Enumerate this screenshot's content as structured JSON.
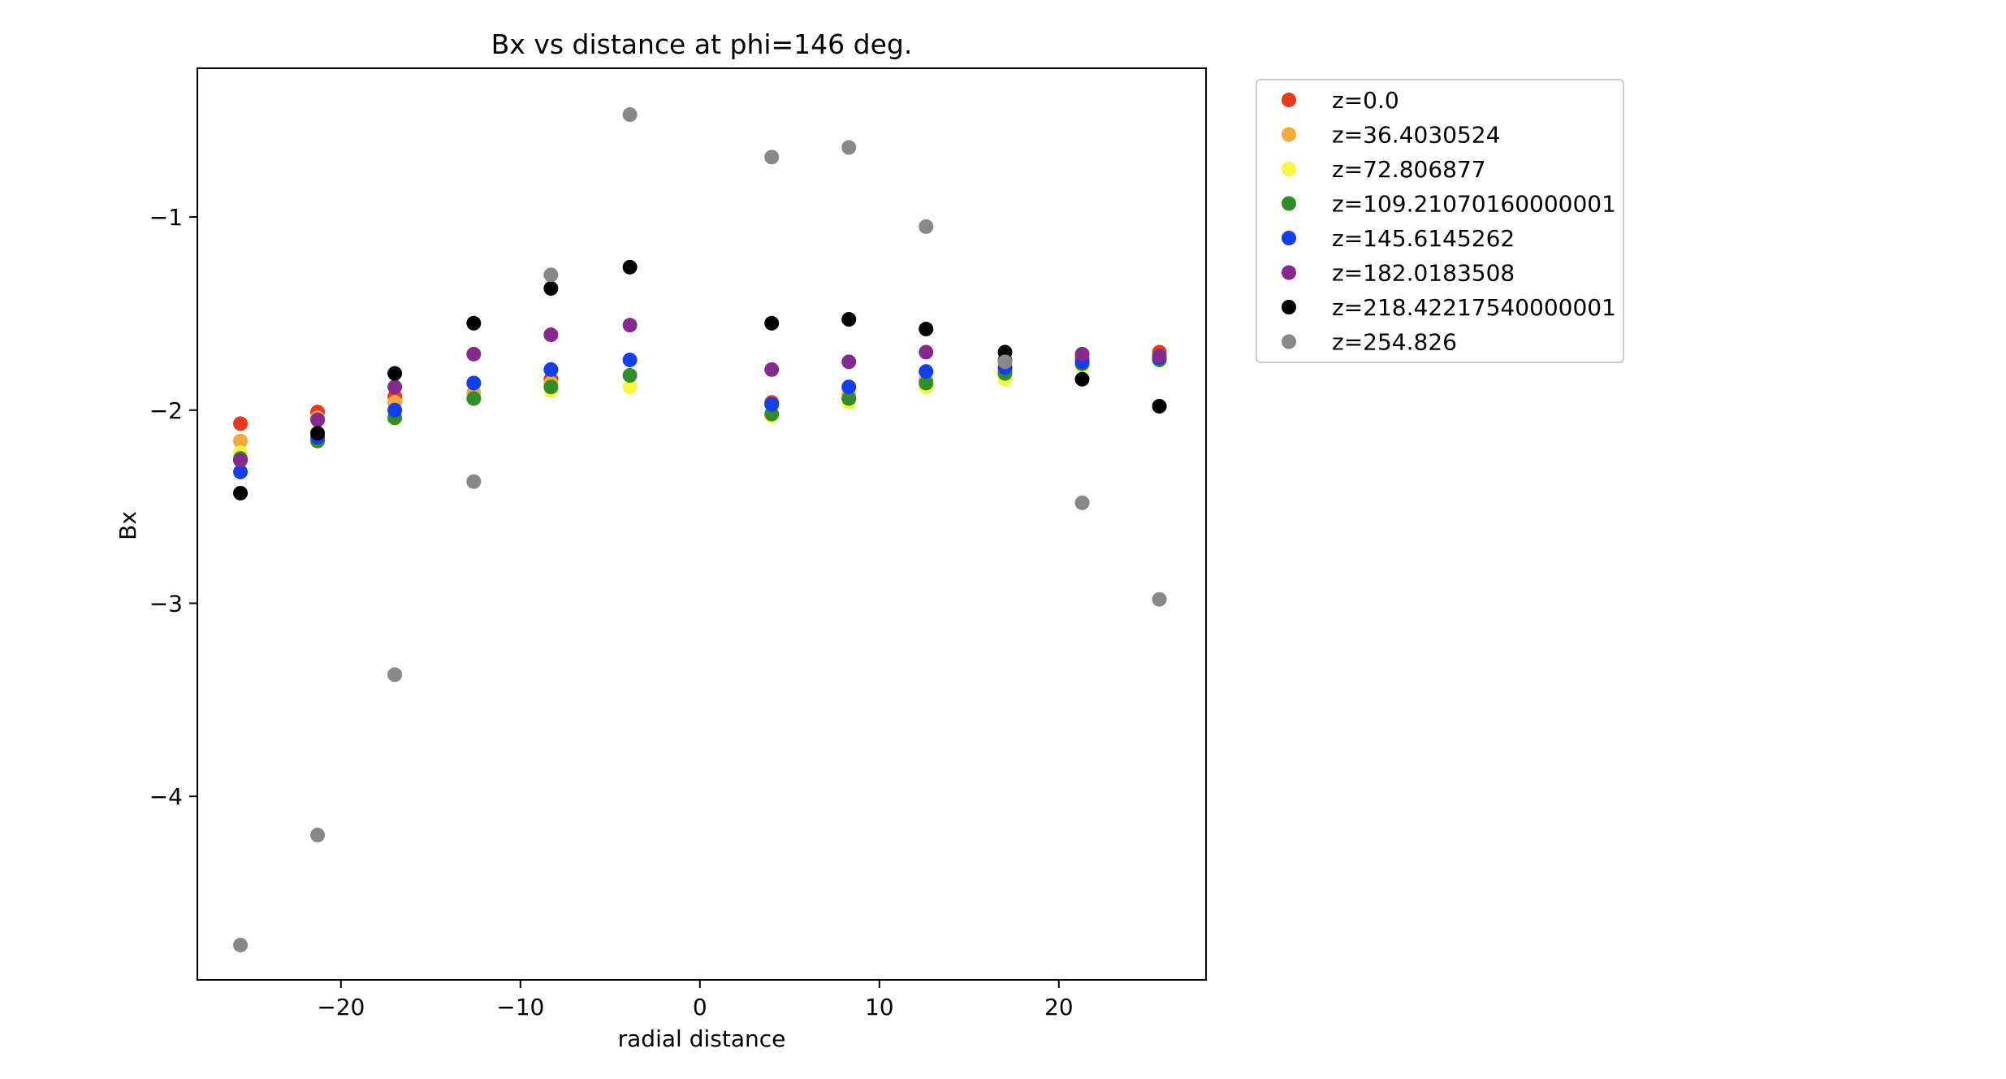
{
  "chart_data": {
    "type": "scatter",
    "title": "Bx vs distance at phi=146 deg.",
    "xlabel": "radial distance",
    "ylabel": "Bx",
    "xlim": [
      -28,
      28.2
    ],
    "ylim": [
      -4.95,
      -0.23
    ],
    "xticks": [
      -20,
      -10,
      0,
      10,
      20
    ],
    "xtick_labels": [
      "−20",
      "−10",
      "0",
      "10",
      "20"
    ],
    "yticks": [
      -4,
      -3,
      -2,
      -1
    ],
    "ytick_labels": [
      "−4",
      "−3",
      "−2",
      "−1"
    ],
    "grid": false,
    "legend_position": "outside-right",
    "x": [
      -25.6,
      -21.3,
      -17.0,
      -12.6,
      -8.3,
      -3.9,
      4.0,
      8.3,
      12.6,
      17.0,
      21.3,
      25.6
    ],
    "series": [
      {
        "name": "z=0.0",
        "color": "#e8391e",
        "values": [
          -2.07,
          -2.01,
          -1.93,
          -1.86,
          -1.84,
          null,
          -1.96,
          -1.94,
          -1.85,
          -1.8,
          -1.73,
          -1.7
        ]
      },
      {
        "name": "z=36.4030524",
        "color": "#f5a93a",
        "values": [
          -2.16,
          -2.04,
          -1.96,
          -1.91,
          -1.86,
          null,
          -1.97,
          -1.92,
          -1.84,
          -1.79,
          -1.75,
          -1.72
        ]
      },
      {
        "name": "z=72.806877",
        "color": "#f9f53e",
        "values": [
          -2.22,
          -2.11,
          -2.02,
          -1.94,
          -1.9,
          -1.88,
          -2.03,
          -1.96,
          -1.88,
          -1.84,
          -1.77,
          -1.74
        ]
      },
      {
        "name": "z=109.21070160000001",
        "color": "#2f8e26",
        "values": [
          -2.25,
          -2.16,
          -2.04,
          -1.94,
          -1.88,
          -1.82,
          -2.02,
          -1.94,
          -1.86,
          -1.81,
          -1.76,
          -1.74
        ]
      },
      {
        "name": "z=145.6145262",
        "color": "#0f3ff0",
        "values": [
          -2.32,
          -2.14,
          -2.0,
          -1.86,
          -1.79,
          -1.74,
          -1.97,
          -1.88,
          -1.8,
          -1.78,
          -1.75,
          -1.73
        ]
      },
      {
        "name": "z=182.0183508",
        "color": "#86298e",
        "values": [
          -2.26,
          -2.05,
          -1.88,
          -1.71,
          -1.61,
          -1.56,
          -1.79,
          -1.75,
          -1.7,
          -1.74,
          -1.71,
          -1.72
        ]
      },
      {
        "name": "z=218.42217540000001",
        "color": "#000000",
        "values": [
          -2.43,
          -2.12,
          -1.81,
          -1.55,
          -1.37,
          -1.26,
          -1.55,
          -1.53,
          -1.58,
          -1.7,
          -1.84,
          -1.98
        ]
      },
      {
        "name": "z=254.826",
        "color": "#888888",
        "values": [
          -4.77,
          -4.2,
          -3.37,
          -2.37,
          -1.3,
          -0.47,
          -0.69,
          -0.64,
          -1.05,
          -1.75,
          -2.48,
          -2.98
        ]
      }
    ]
  }
}
